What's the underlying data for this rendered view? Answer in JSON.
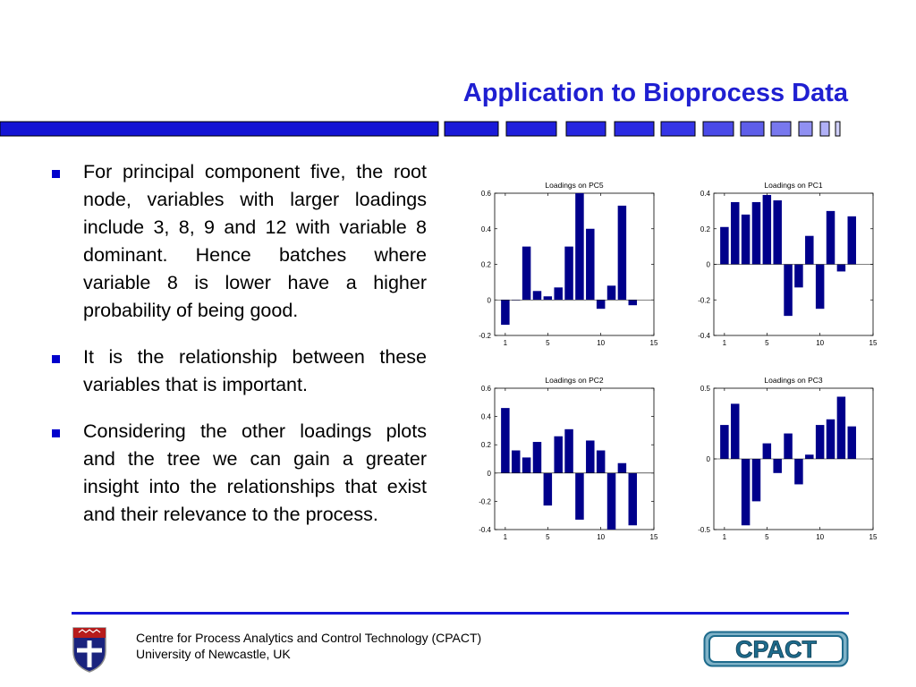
{
  "slide": {
    "title": "Application to Bioprocess Data",
    "accent": "#1f1fd1",
    "bullets": [
      "For principal component five, the root node, variables with larger loadings include 3, 8, 9 and 12 with variable 8 dominant. Hence batches where variable 8 is lower have a higher probability of being good.",
      "It is the relationship between these variables that is important.",
      "Considering the other loadings plots and the tree we can gain a greater insight into the relationships that exist and their relevance to the process."
    ]
  },
  "footer": {
    "line1": "Centre for Process Analytics and Control Technology   (CPACT)",
    "line2": "University of Newcastle, UK",
    "logo_text": "CPACT",
    "logo_color": "#1e6b8c"
  },
  "chart_data": [
    {
      "type": "bar",
      "title": "Loadings on PC5",
      "x": [
        1,
        2,
        3,
        4,
        5,
        6,
        7,
        8,
        9,
        10,
        11,
        12,
        13
      ],
      "values": [
        -0.14,
        0.0,
        0.3,
        0.05,
        0.02,
        0.07,
        0.3,
        0.6,
        0.4,
        -0.05,
        0.08,
        0.53,
        -0.03
      ],
      "xlim": [
        0,
        15
      ],
      "ylim": [
        -0.2,
        0.6
      ],
      "xticks": [
        "1",
        "5",
        "10",
        "15"
      ],
      "yticks": [
        "-0.2",
        "0",
        "0.2",
        "0.4",
        "0.6"
      ],
      "color": "#00008b"
    },
    {
      "type": "bar",
      "title": "Loadings on PC1",
      "x": [
        1,
        2,
        3,
        4,
        5,
        6,
        7,
        8,
        9,
        10,
        11,
        12,
        13
      ],
      "values": [
        0.21,
        0.35,
        0.28,
        0.35,
        0.39,
        0.36,
        -0.29,
        -0.13,
        0.16,
        -0.25,
        0.3,
        -0.04,
        0.27
      ],
      "xlim": [
        0,
        15
      ],
      "ylim": [
        -0.4,
        0.4
      ],
      "xticks": [
        "1",
        "5",
        "10",
        "15"
      ],
      "yticks": [
        "-0.4",
        "-0.2",
        "0",
        "0.2",
        "0.4"
      ],
      "color": "#00008b"
    },
    {
      "type": "bar",
      "title": "Loadings on PC2",
      "x": [
        1,
        2,
        3,
        4,
        5,
        6,
        7,
        8,
        9,
        10,
        11,
        12,
        13
      ],
      "values": [
        0.46,
        0.16,
        0.11,
        0.22,
        -0.23,
        0.26,
        0.31,
        -0.33,
        0.23,
        0.16,
        -0.4,
        0.07,
        -0.37
      ],
      "xlim": [
        0,
        15
      ],
      "ylim": [
        -0.4,
        0.6
      ],
      "xticks": [
        "1",
        "5",
        "10",
        "15"
      ],
      "yticks": [
        "-0.4",
        "-0.2",
        "0",
        "0.2",
        "0.4",
        "0.6"
      ],
      "color": "#00008b"
    },
    {
      "type": "bar",
      "title": "Loadings on PC3",
      "x": [
        1,
        2,
        3,
        4,
        5,
        6,
        7,
        8,
        9,
        10,
        11,
        12,
        13
      ],
      "values": [
        0.24,
        0.39,
        -0.47,
        -0.3,
        0.11,
        -0.1,
        0.18,
        -0.18,
        0.03,
        0.24,
        0.28,
        0.44,
        0.23
      ],
      "xlim": [
        0,
        15
      ],
      "ylim": [
        -0.5,
        0.5
      ],
      "xticks": [
        "1",
        "5",
        "10",
        "15"
      ],
      "yticks": [
        "-0.5",
        "0",
        "0.5"
      ],
      "color": "#00008b"
    }
  ]
}
